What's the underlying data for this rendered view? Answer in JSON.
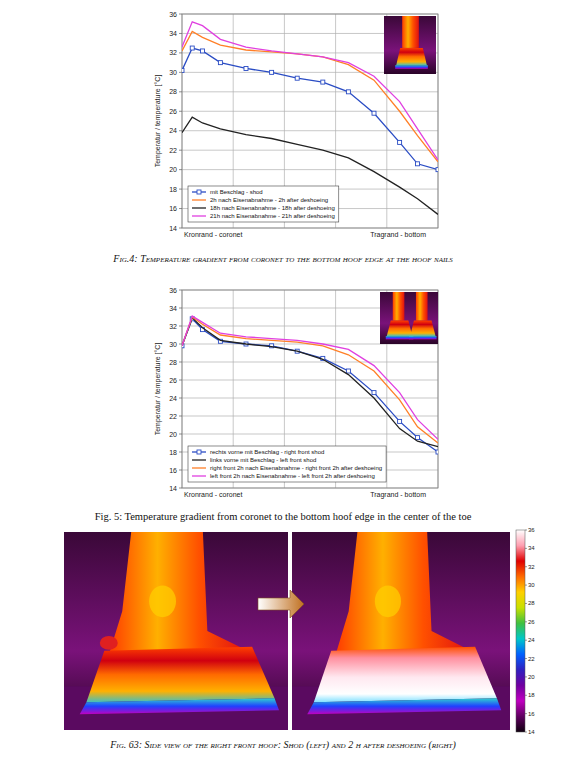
{
  "chart_data": [
    {
      "type": "line",
      "ylabel": "Temperatur / temperature [°C]",
      "x_start_label": "Kronrand - coronet",
      "x_end_label": "Tragrand - bottom",
      "caption": "Fig.4: Temperature gradient from coronet to the bottom hoof edge at the hoof nails",
      "x": [
        0,
        4,
        8,
        15,
        25,
        35,
        45,
        55,
        65,
        75,
        85,
        92,
        100
      ],
      "xlim": [
        0,
        100
      ],
      "xticks": [
        0,
        20,
        40,
        60,
        80,
        100
      ],
      "ylim": [
        14,
        36
      ],
      "yticks": [
        14,
        16,
        18,
        20,
        22,
        24,
        26,
        28,
        30,
        32,
        34,
        36
      ],
      "grid": true,
      "legend": "lower left",
      "tick_labels": "y",
      "series": [
        {
          "name": "mit Beschlag - shod",
          "color": "#2a4cc4",
          "marker": "square",
          "values": [
            30.2,
            32.5,
            32.2,
            31.0,
            30.4,
            30.0,
            29.4,
            29.0,
            28.0,
            25.8,
            22.8,
            20.6,
            20.0
          ]
        },
        {
          "name": "2h nach Eisenabnahme - 2h after deshoeing",
          "color": "#ff7f27",
          "values": [
            32.2,
            34.2,
            33.6,
            32.8,
            32.3,
            32.1,
            31.9,
            31.6,
            30.8,
            29.2,
            26.0,
            23.5,
            20.8
          ]
        },
        {
          "name": "18h nach Eisenabnahme - 18h after deshoeing",
          "color": "#222222",
          "values": [
            23.8,
            25.4,
            24.8,
            24.2,
            23.6,
            23.2,
            22.6,
            22.0,
            21.2,
            19.8,
            18.2,
            17.0,
            15.4
          ]
        },
        {
          "name": "21h nach Eisenabnahme - 21h after deshoeing",
          "color": "#e040e0",
          "values": [
            32.6,
            35.2,
            34.8,
            33.4,
            32.6,
            32.2,
            31.9,
            31.6,
            31.0,
            29.6,
            27.0,
            24.2,
            21.0
          ]
        }
      ]
    },
    {
      "type": "line",
      "ylabel": "Temperatur / temperature [°C]",
      "x_start_label": "Kronrand - coronet",
      "x_end_label": "Tragrand - bottom",
      "caption": "Fig. 5: Temperature gradient from coronet to the bottom hoof edge in the center of the toe",
      "x": [
        0,
        4,
        8,
        15,
        25,
        35,
        45,
        55,
        65,
        75,
        85,
        92,
        100
      ],
      "xlim": [
        0,
        100
      ],
      "xticks": [
        0,
        20,
        40,
        60,
        80,
        100
      ],
      "ylim": [
        14,
        36
      ],
      "yticks": [
        14,
        16,
        18,
        20,
        22,
        24,
        26,
        28,
        30,
        32,
        34,
        36
      ],
      "grid": true,
      "legend": "lower left",
      "tick_labels": "y",
      "series": [
        {
          "name": "rechts vorne mit Beschlag - right front shod",
          "color": "#2a4cc4",
          "marker": "square",
          "values": [
            29.8,
            32.8,
            31.6,
            30.3,
            30.0,
            29.8,
            29.2,
            28.4,
            27.0,
            24.6,
            21.4,
            19.6,
            18.0
          ]
        },
        {
          "name": "links vorne mit Beschlag - left front shod",
          "color": "#222222",
          "values": [
            29.8,
            32.9,
            31.8,
            30.4,
            30.0,
            29.7,
            29.2,
            28.3,
            26.6,
            24.0,
            20.6,
            19.2,
            18.6
          ]
        },
        {
          "name": "right front 2h nach Eisenabnahme - right front 2h after deshoeing",
          "color": "#ff7f27",
          "values": [
            29.8,
            33.0,
            32.2,
            31.0,
            30.6,
            30.4,
            30.2,
            29.8,
            28.8,
            27.0,
            23.8,
            20.8,
            19.0
          ]
        },
        {
          "name": "left front 2h nach Eisenabnahme - left front 2h after deshoeing",
          "color": "#e040e0",
          "values": [
            29.8,
            33.1,
            32.4,
            31.2,
            30.8,
            30.6,
            30.4,
            30.0,
            29.4,
            27.6,
            24.6,
            21.6,
            19.4
          ]
        }
      ]
    }
  ],
  "fig63": {
    "caption": "Fig. 63: Side view of the right front hoof: Shod (left) and 2 h after deshoeing (right)",
    "colorbar_range": [
      14,
      36
    ],
    "colorbar_ticks": [
      14,
      16,
      18,
      20,
      22,
      24,
      26,
      28,
      30,
      32,
      34,
      36
    ]
  }
}
